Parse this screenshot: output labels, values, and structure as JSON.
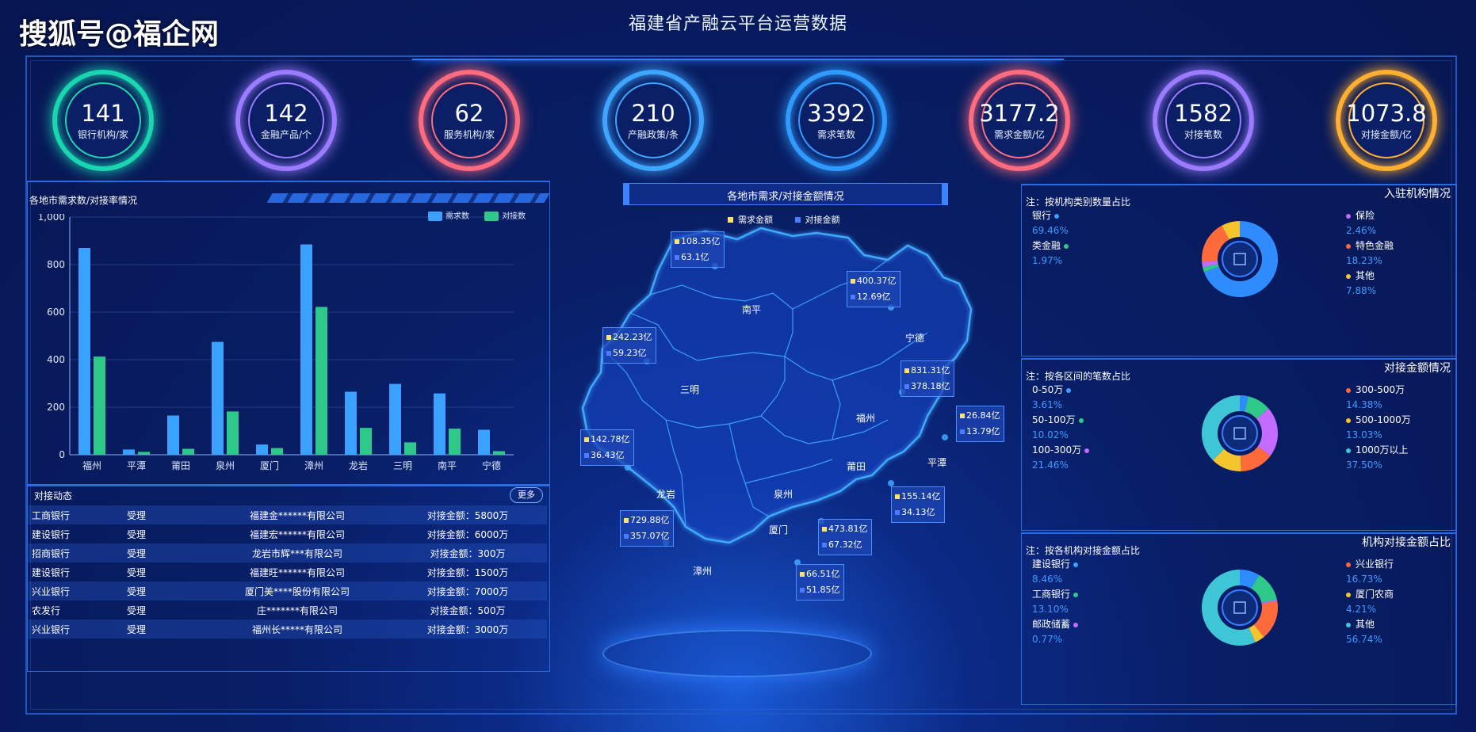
{
  "watermark": "搜狐号@福企网",
  "title": "福建省产融云平台运营数据",
  "kpis": [
    {
      "value": "141",
      "label": "银行机构/家",
      "color": "#19d6b0"
    },
    {
      "value": "142",
      "label": "金融产品/个",
      "color": "#9b7bff"
    },
    {
      "value": "62",
      "label": "服务机构/家",
      "color": "#ff6b7f"
    },
    {
      "value": "210",
      "label": "产融政策/条",
      "color": "#3fa6ff"
    },
    {
      "value": "3392",
      "label": "需求笔数",
      "color": "#2f9bff"
    },
    {
      "value": "3177.2",
      "label": "需求金额/亿",
      "color": "#ff6b7f"
    },
    {
      "value": "1582",
      "label": "对接笔数",
      "color": "#9b7bff"
    },
    {
      "value": "1073.8",
      "label": "对接金额/亿",
      "color": "#ffb030"
    }
  ],
  "left_panel": {
    "title": "各地市需求数/对接率情况",
    "legend": [
      "需求数",
      "对接数"
    ]
  },
  "chart_data": {
    "type": "bar",
    "title": "各地市需求数/对接率情况",
    "categories": [
      "福州",
      "平潭",
      "莆田",
      "泉州",
      "厦门",
      "漳州",
      "龙岩",
      "三明",
      "南平",
      "宁德"
    ],
    "series": [
      {
        "name": "需求数",
        "values": [
          870,
          22,
          165,
          475,
          43,
          885,
          265,
          298,
          258,
          105
        ],
        "color": "#3aa1ff"
      },
      {
        "name": "对接数",
        "values": [
          413,
          12,
          25,
          182,
          28,
          622,
          113,
          52,
          110,
          15
        ],
        "color": "#2ec98a"
      }
    ],
    "yticks": [
      "0",
      "200",
      "400",
      "600",
      "800",
      "1,000"
    ],
    "ylim": [
      0,
      1000
    ],
    "grid": true,
    "legend_position": "top-right"
  },
  "dynamics": {
    "title": "对接动态",
    "more_label": "更多",
    "rows": [
      [
        "工商银行",
        "受理",
        "福建金******有限公司",
        "对接金额：5800万"
      ],
      [
        "建设银行",
        "受理",
        "福建宏******有限公司",
        "对接金额：6000万"
      ],
      [
        "招商银行",
        "受理",
        "龙岩市辉***有限公司",
        "对接金额：300万"
      ],
      [
        "建设银行",
        "受理",
        "福建旺******有限公司",
        "对接金额：1500万"
      ],
      [
        "兴业银行",
        "受理",
        "厦门美****股份有限公司",
        "对接金额：7000万"
      ],
      [
        "农发行",
        "受理",
        "庄*******有限公司",
        "对接金额：500万"
      ],
      [
        "兴业银行",
        "受理",
        "福州长*****有限公司",
        "对接金额：3000万"
      ]
    ]
  },
  "map": {
    "title": "各地市需求/对接金额情况",
    "legend": [
      "需求金额",
      "对接金额"
    ],
    "cities": [
      "南平",
      "宁德",
      "三明",
      "福州",
      "莆田",
      "平潭",
      "龙岩",
      "泉州",
      "厦门",
      "漳州"
    ],
    "boxes": [
      [
        "108.35亿",
        "63.1亿"
      ],
      [
        "400.37亿",
        "12.69亿"
      ],
      [
        "242.23亿",
        "59.23亿"
      ],
      [
        "831.31亿",
        "378.18亿"
      ],
      [
        "26.84亿",
        "13.79亿"
      ],
      [
        "142.78亿",
        "36.43亿"
      ],
      [
        "155.14亿",
        "34.13亿"
      ],
      [
        "729.88亿",
        "357.07亿"
      ],
      [
        "473.81亿",
        "67.32亿"
      ],
      [
        "66.51亿",
        "51.85亿"
      ]
    ]
  },
  "right": {
    "sections": [
      {
        "header": "入驻机构情况",
        "note": "注：按机构类别数量占比",
        "left": [
          {
            "name": "银行",
            "pct": "69.46%",
            "color": "#3aa1ff"
          },
          {
            "name": "类金融",
            "pct": "1.97%",
            "color": "#2ec98a"
          }
        ],
        "right": [
          {
            "name": "保险",
            "pct": "2.46%",
            "color": "#c36bff"
          },
          {
            "name": "特色金融",
            "pct": "18.23%",
            "color": "#ff6a3a"
          },
          {
            "name": "其他",
            "pct": "7.88%",
            "color": "#f5c52e"
          }
        ],
        "donut": [
          69.46,
          1.97,
          2.46,
          18.23,
          7.88
        ],
        "donut_colors": [
          "#2f8cff",
          "#2ec98a",
          "#c36bff",
          "#ff6a3a",
          "#f5c52e"
        ]
      },
      {
        "header": "对接金额情况",
        "note": "注：按各区间的笔数占比",
        "left": [
          {
            "name": "0-50万",
            "pct": "3.61%",
            "color": "#3aa1ff"
          },
          {
            "name": "50-100万",
            "pct": "10.02%",
            "color": "#2ec98a"
          },
          {
            "name": "100-300万",
            "pct": "21.46%",
            "color": "#c36bff"
          }
        ],
        "right": [
          {
            "name": "300-500万",
            "pct": "14.38%",
            "color": "#ff6a3a"
          },
          {
            "name": "500-1000万",
            "pct": "13.03%",
            "color": "#f5c52e"
          },
          {
            "name": "1000万以上",
            "pct": "37.50%",
            "color": "#3fc6d6"
          }
        ],
        "donut": [
          3.61,
          10.02,
          21.46,
          14.38,
          13.03,
          37.5
        ],
        "donut_colors": [
          "#2f8cff",
          "#2ec98a",
          "#c36bff",
          "#ff6a3a",
          "#f5c52e",
          "#3fc6d6"
        ]
      },
      {
        "header": "机构对接金额占比",
        "note": "注：按各机构对接金额占比",
        "left": [
          {
            "name": "建设银行",
            "pct": "8.46%",
            "color": "#3aa1ff"
          },
          {
            "name": "工商银行",
            "pct": "13.10%",
            "color": "#2ec98a"
          },
          {
            "name": "邮政储蓄",
            "pct": "0.77%",
            "color": "#c36bff"
          }
        ],
        "right": [
          {
            "name": "兴业银行",
            "pct": "16.73%",
            "color": "#ff6a3a"
          },
          {
            "name": "厦门农商",
            "pct": "4.21%",
            "color": "#f5c52e"
          },
          {
            "name": "其他",
            "pct": "56.74%",
            "color": "#3fc6d6"
          }
        ],
        "donut": [
          8.46,
          13.1,
          0.77,
          16.73,
          4.21,
          56.74
        ],
        "donut_colors": [
          "#2f8cff",
          "#2ec98a",
          "#c36bff",
          "#ff6a3a",
          "#f5c52e",
          "#3fc6d6"
        ]
      }
    ]
  }
}
